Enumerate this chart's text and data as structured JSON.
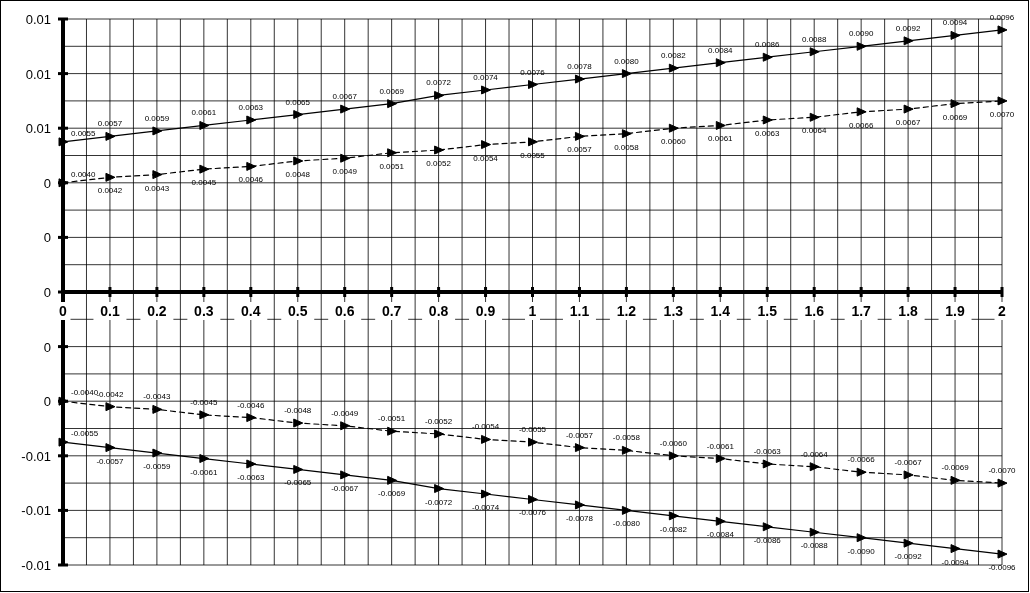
{
  "chart_data": {
    "type": "line",
    "x": [
      0,
      0.1,
      0.2,
      0.3,
      0.4,
      0.5,
      0.6,
      0.7,
      0.8,
      0.9,
      1,
      1.1,
      1.2,
      1.3,
      1.4,
      1.5,
      1.6,
      1.7,
      1.8,
      1.9,
      2
    ],
    "xlim": [
      0,
      2
    ],
    "xticks": [
      0,
      0.1,
      0.2,
      0.3,
      0.4,
      0.5,
      0.6,
      0.7,
      0.8,
      0.9,
      1,
      1.1,
      1.2,
      1.3,
      1.4,
      1.5,
      1.6,
      1.7,
      1.8,
      1.9,
      2
    ],
    "ylim": [
      -0.01,
      0.01
    ],
    "yticks": [
      {
        "value": 0.01,
        "label": "0.01"
      },
      {
        "value": 0.008,
        "label": "0.01"
      },
      {
        "value": 0.006,
        "label": "0.01"
      },
      {
        "value": 0.004,
        "label": "0"
      },
      {
        "value": 0.002,
        "label": "0"
      },
      {
        "value": 0,
        "label": "0"
      },
      {
        "value": -0.002,
        "label": "0"
      },
      {
        "value": -0.004,
        "label": "0"
      },
      {
        "value": -0.006,
        "label": "-0.01"
      },
      {
        "value": -0.008,
        "label": "-0.01"
      },
      {
        "value": -0.01,
        "label": "-0.01"
      }
    ],
    "grid": true,
    "marker": "triangle",
    "series": [
      {
        "color": "#000000",
        "line_style": "solid",
        "values": [
          0.0055,
          0.0057,
          0.0059,
          0.0061,
          0.0063,
          0.0065,
          0.0067,
          0.0069,
          0.0072,
          0.0074,
          0.0076,
          0.0078,
          0.008,
          0.0082,
          0.0084,
          0.0086,
          0.0088,
          0.009,
          0.0092,
          0.0094,
          0.0096
        ],
        "value_labels": [
          "0.0055",
          "0.0057",
          "0.0059",
          "0.0061",
          "0.0063",
          "0.0065",
          "0.0067",
          "0.0069",
          "0.0072",
          "0.0074",
          "0.0076",
          "0.0078",
          "0.0080",
          "0.0082",
          "0.0084",
          "0.0086",
          "0.0088",
          "0.0090",
          "0.0092",
          "0.0094",
          "0.0096"
        ]
      },
      {
        "color": "#000000",
        "line_style": "dashed",
        "values": [
          0.004,
          0.0042,
          0.0043,
          0.0045,
          0.0046,
          0.0048,
          0.0049,
          0.0051,
          0.0052,
          0.0054,
          0.0055,
          0.0057,
          0.0058,
          0.006,
          0.0061,
          0.0063,
          0.0064,
          0.0066,
          0.0067,
          0.0069,
          0.007
        ],
        "value_labels": [
          "0.0040",
          "0.0042",
          "0.0043",
          "0.0045",
          "0.0046",
          "0.0048",
          "0.0049",
          "0.0051",
          "0.0052",
          "0.0054",
          "0.0055",
          "0.0057",
          "0.0058",
          "0.0060",
          "0.0061",
          "0.0063",
          "0.0064",
          "0.0066",
          "0.0067",
          "0.0069",
          "0.0070"
        ]
      },
      {
        "color": "#000000",
        "line_style": "dashed",
        "values": [
          -0.004,
          -0.0042,
          -0.0043,
          -0.0045,
          -0.0046,
          -0.0048,
          -0.0049,
          -0.0051,
          -0.0052,
          -0.0054,
          -0.0055,
          -0.0057,
          -0.0058,
          -0.006,
          -0.0061,
          -0.0063,
          -0.0064,
          -0.0066,
          -0.0067,
          -0.0069,
          -0.007
        ],
        "value_labels": [
          "-0.0040",
          "-0.0042",
          "-0.0043",
          "-0.0045",
          "-0.0046",
          "-0.0048",
          "-0.0049",
          "-0.0051",
          "-0.0052",
          "-0.0054",
          "-0.0055",
          "-0.0057",
          "-0.0058",
          "-0.0060",
          "-0.0061",
          "-0.0063",
          "-0.0064",
          "-0.0066",
          "-0.0067",
          "-0.0069",
          "-0.0070"
        ]
      },
      {
        "color": "#000000",
        "line_style": "solid",
        "values": [
          -0.0055,
          -0.0057,
          -0.0059,
          -0.0061,
          -0.0063,
          -0.0065,
          -0.0067,
          -0.0069,
          -0.0072,
          -0.0074,
          -0.0076,
          -0.0078,
          -0.008,
          -0.0082,
          -0.0084,
          -0.0086,
          -0.0088,
          -0.009,
          -0.0092,
          -0.0094,
          -0.0096
        ],
        "value_labels": [
          "-0.0055",
          "-0.0057",
          "-0.0059",
          "-0.0061",
          "-0.0063",
          "-0.0065",
          "-0.0067",
          "-0.0069",
          "-0.0072",
          "-0.0074",
          "-0.0076",
          "-0.0078",
          "-0.0080",
          "-0.0082",
          "-0.0084",
          "-0.0086",
          "-0.0088",
          "-0.0090",
          "-0.0092",
          "-0.0094",
          "-0.0096"
        ]
      }
    ]
  }
}
